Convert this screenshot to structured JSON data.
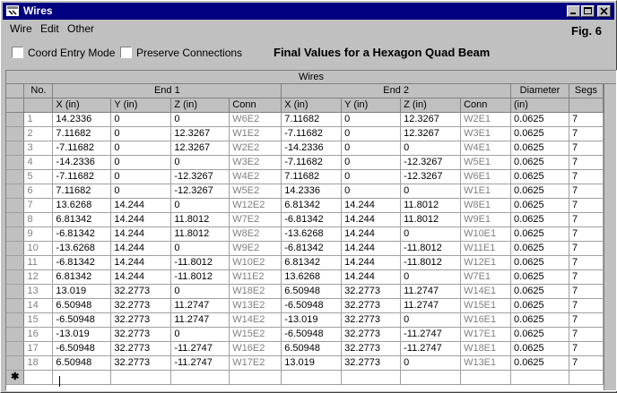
{
  "window": {
    "title": "Wires",
    "menu": [
      "Wire",
      "Edit",
      "Other"
    ],
    "fig_label": "Fig. 6",
    "checkboxes": [
      {
        "label": "Coord Entry Mode",
        "checked": false
      },
      {
        "label": "Preserve Connections",
        "checked": false
      }
    ],
    "heading": "Final Values for a Hexagon Quad Beam"
  },
  "grid": {
    "caption": "Wires",
    "group_headers": {
      "no": "No.",
      "end1": "End 1",
      "end2": "End 2",
      "diameter": "Diameter",
      "segs": "Segs"
    },
    "col_headers": [
      "X (in)",
      "Y (in)",
      "Z (in)",
      "Conn",
      "X (in)",
      "Y (in)",
      "Z (in)",
      "Conn",
      "(in)",
      ""
    ],
    "rows": [
      [
        "1",
        "14.2336",
        "0",
        "0",
        "W6E2",
        "7.11682",
        "0",
        "12.3267",
        "W2E1",
        "0.0625",
        "7"
      ],
      [
        "2",
        "7.11682",
        "0",
        "12.3267",
        "W1E2",
        "-7.11682",
        "0",
        "12.3267",
        "W3E1",
        "0.0625",
        "7"
      ],
      [
        "3",
        "-7.11682",
        "0",
        "12.3267",
        "W2E2",
        "-14.2336",
        "0",
        "0",
        "W4E1",
        "0.0625",
        "7"
      ],
      [
        "4",
        "-14.2336",
        "0",
        "0",
        "W3E2",
        "-7.11682",
        "0",
        "-12.3267",
        "W5E1",
        "0.0625",
        "7"
      ],
      [
        "5",
        "-7.11682",
        "0",
        "-12.3267",
        "W4E2",
        "7.11682",
        "0",
        "-12.3267",
        "W6E1",
        "0.0625",
        "7"
      ],
      [
        "6",
        "7.11682",
        "0",
        "-12.3267",
        "W5E2",
        "14.2336",
        "0",
        "0",
        "W1E1",
        "0.0625",
        "7"
      ],
      [
        "7",
        "13.6268",
        "14.244",
        "0",
        "W12E2",
        "6.81342",
        "14.244",
        "11.8012",
        "W8E1",
        "0.0625",
        "7"
      ],
      [
        "8",
        "6.81342",
        "14.244",
        "11.8012",
        "W7E2",
        "-6.81342",
        "14.244",
        "11.8012",
        "W9E1",
        "0.0625",
        "7"
      ],
      [
        "9",
        "-6.81342",
        "14.244",
        "11.8012",
        "W8E2",
        "-13.6268",
        "14.244",
        "0",
        "W10E1",
        "0.0625",
        "7"
      ],
      [
        "10",
        "-13.6268",
        "14.244",
        "0",
        "W9E2",
        "-6.81342",
        "14.244",
        "-11.8012",
        "W11E1",
        "0.0625",
        "7"
      ],
      [
        "11",
        "-6.81342",
        "14.244",
        "-11.8012",
        "W10E2",
        "6.81342",
        "14.244",
        "-11.8012",
        "W12E1",
        "0.0625",
        "7"
      ],
      [
        "12",
        "6.81342",
        "14.244",
        "-11.8012",
        "W11E2",
        "13.6268",
        "14.244",
        "0",
        "W7E1",
        "0.0625",
        "7"
      ],
      [
        "13",
        "13.019",
        "32.2773",
        "0",
        "W18E2",
        "6.50948",
        "32.2773",
        "11.2747",
        "W14E1",
        "0.0625",
        "7"
      ],
      [
        "14",
        "6.50948",
        "32.2773",
        "11.2747",
        "W13E2",
        "-6.50948",
        "32.2773",
        "11.2747",
        "W15E1",
        "0.0625",
        "7"
      ],
      [
        "15",
        "-6.50948",
        "32.2773",
        "11.2747",
        "W14E2",
        "-13.019",
        "32.2773",
        "0",
        "W16E1",
        "0.0625",
        "7"
      ],
      [
        "16",
        "-13.019",
        "32.2773",
        "0",
        "W15E2",
        "-6.50948",
        "32.2773",
        "-11.2747",
        "W17E1",
        "0.0625",
        "7"
      ],
      [
        "17",
        "-6.50948",
        "32.2773",
        "-11.2747",
        "W16E2",
        "6.50948",
        "32.2773",
        "-11.2747",
        "W18E1",
        "0.0625",
        "7"
      ],
      [
        "18",
        "6.50948",
        "32.2773",
        "-11.2747",
        "W17E2",
        "13.019",
        "32.2773",
        "0",
        "W13E1",
        "0.0625",
        "7"
      ]
    ],
    "new_row_marker": "✱"
  }
}
